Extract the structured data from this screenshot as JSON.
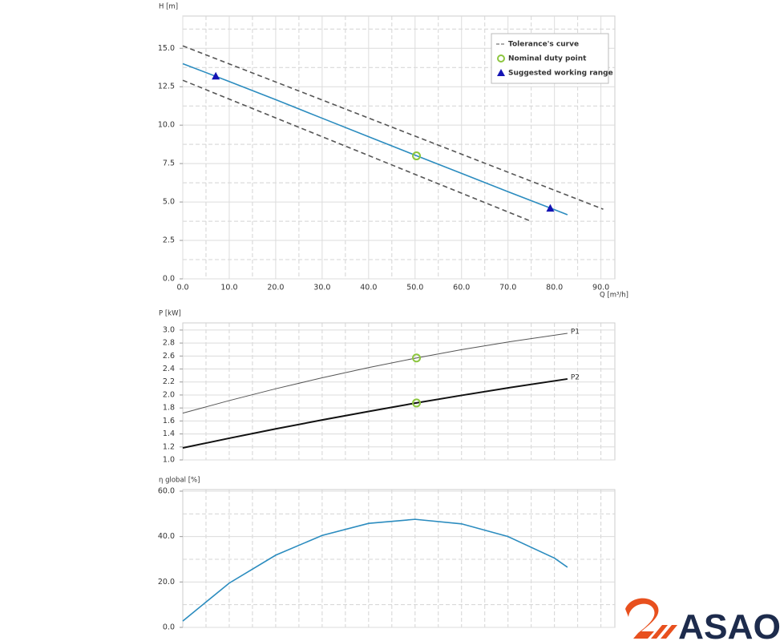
{
  "chart_data": [
    {
      "type": "line",
      "ylabel": "H [m]",
      "xlabel": "Q [m³/h]",
      "xlim": [
        0,
        93
      ],
      "ylim": [
        0,
        17.1
      ],
      "xticks": [
        {
          "value": 0,
          "label": "0.0"
        },
        {
          "value": 10,
          "label": "10.0"
        },
        {
          "value": 20,
          "label": "20.0"
        },
        {
          "value": 30,
          "label": "30.0"
        },
        {
          "value": 40,
          "label": "40.0"
        },
        {
          "value": 50,
          "label": "50.0"
        },
        {
          "value": 60,
          "label": "60.0"
        },
        {
          "value": 70,
          "label": "70.0"
        },
        {
          "value": 80,
          "label": "80.0"
        },
        {
          "value": 90,
          "label": "90.0"
        }
      ],
      "xminorticks": [
        5,
        15,
        25,
        35,
        45,
        55,
        65,
        75,
        85
      ],
      "yticks": [
        {
          "value": 0,
          "label": "0.0"
        },
        {
          "value": 2.5,
          "label": "2.5"
        },
        {
          "value": 5,
          "label": "5.0"
        },
        {
          "value": 7.5,
          "label": "7.5"
        },
        {
          "value": 10,
          "label": "10.0"
        },
        {
          "value": 12.5,
          "label": "12.5"
        },
        {
          "value": 15,
          "label": "15.0"
        }
      ],
      "yminorticks": [
        1.25,
        3.75,
        6.25,
        8.75,
        11.25,
        13.75,
        16.25
      ],
      "grid": true,
      "legend": "upper right",
      "series": [
        {
          "color": "#2b8cbf",
          "x": [
            0,
            10,
            20,
            30,
            40,
            50,
            60,
            70,
            80,
            82.8
          ],
          "values": [
            14.0,
            12.84,
            11.66,
            10.45,
            9.25,
            8.05,
            6.86,
            5.67,
            4.5,
            4.17
          ]
        },
        {
          "name": "Tolerance's curve",
          "color": "#555555",
          "dash": true,
          "x": [
            0,
            90.5
          ],
          "values": [
            15.16,
            4.53
          ]
        },
        {
          "color": "#555555",
          "dash": true,
          "x": [
            0,
            74.5
          ],
          "values": [
            12.92,
            3.8
          ]
        },
        {
          "name": "Nominal duty point",
          "color": "#8dc63f",
          "marker": "circle",
          "x": [
            50.3
          ],
          "values": [
            8.0
          ]
        },
        {
          "name": "Suggested working range",
          "color": "#1414b4",
          "marker": "triangle",
          "x": [
            7.1,
            79.1
          ],
          "values": [
            13.18,
            4.58
          ]
        }
      ]
    },
    {
      "type": "line",
      "ylabel": "P [kW]",
      "xlim": [
        0,
        93
      ],
      "ylim": [
        1.0,
        3.11
      ],
      "xminorticks": [
        5,
        10,
        15,
        20,
        25,
        30,
        35,
        40,
        45,
        50,
        55,
        60,
        65,
        70,
        75,
        80,
        85,
        90
      ],
      "yticks": [
        {
          "value": 1.0,
          "label": "1.0"
        },
        1.2,
        1.4,
        1.6,
        1.8,
        {
          "value": 2.0,
          "label": "2.0"
        },
        2.2,
        2.4,
        2.6,
        2.8,
        {
          "value": 3.0,
          "label": "3.0"
        }
      ],
      "grid": true,
      "series_labels": "end",
      "series": [
        {
          "name": "P1",
          "color": "#555555",
          "width": 1,
          "x": [
            0,
            10,
            20,
            30,
            40,
            50,
            60,
            70,
            82.8
          ],
          "values": [
            1.72,
            1.914,
            2.096,
            2.265,
            2.422,
            2.566,
            2.698,
            2.816,
            2.95
          ]
        },
        {
          "name": "P2",
          "color": "#111111",
          "width": 2,
          "x": [
            0,
            10,
            20,
            30,
            40,
            50,
            60,
            70,
            82.8
          ],
          "values": [
            1.185,
            1.334,
            1.478,
            1.615,
            1.747,
            1.874,
            1.994,
            2.109,
            2.247
          ]
        },
        {
          "color": "#8dc63f",
          "marker": "circle",
          "x": [
            50.3,
            50.3
          ],
          "values": [
            2.57,
            1.877
          ]
        }
      ]
    },
    {
      "type": "line",
      "ylabel": "η global [%]",
      "xlim": [
        0,
        93
      ],
      "ylim": [
        0,
        60.7
      ],
      "xminorticks": [
        5,
        10,
        15,
        20,
        25,
        30,
        35,
        40,
        45,
        50,
        55,
        60,
        65,
        70,
        75,
        80,
        85,
        90
      ],
      "yticks": [
        {
          "value": 0,
          "label": "0.0"
        },
        {
          "value": 20,
          "label": "20.0"
        },
        {
          "value": 40,
          "label": "40.0"
        },
        {
          "value": 60,
          "label": "60.0"
        }
      ],
      "yminorticks": [
        10,
        30,
        50
      ],
      "grid": true,
      "series": [
        {
          "color": "#2b8cbf",
          "x": [
            0,
            10,
            20,
            30,
            40,
            50,
            60,
            70,
            80,
            82.8
          ],
          "values": [
            2.8,
            19.5,
            31.8,
            40.5,
            45.8,
            47.6,
            45.6,
            40.0,
            30.5,
            26.5
          ]
        }
      ]
    }
  ],
  "logo": {
    "text": "ASAO"
  }
}
